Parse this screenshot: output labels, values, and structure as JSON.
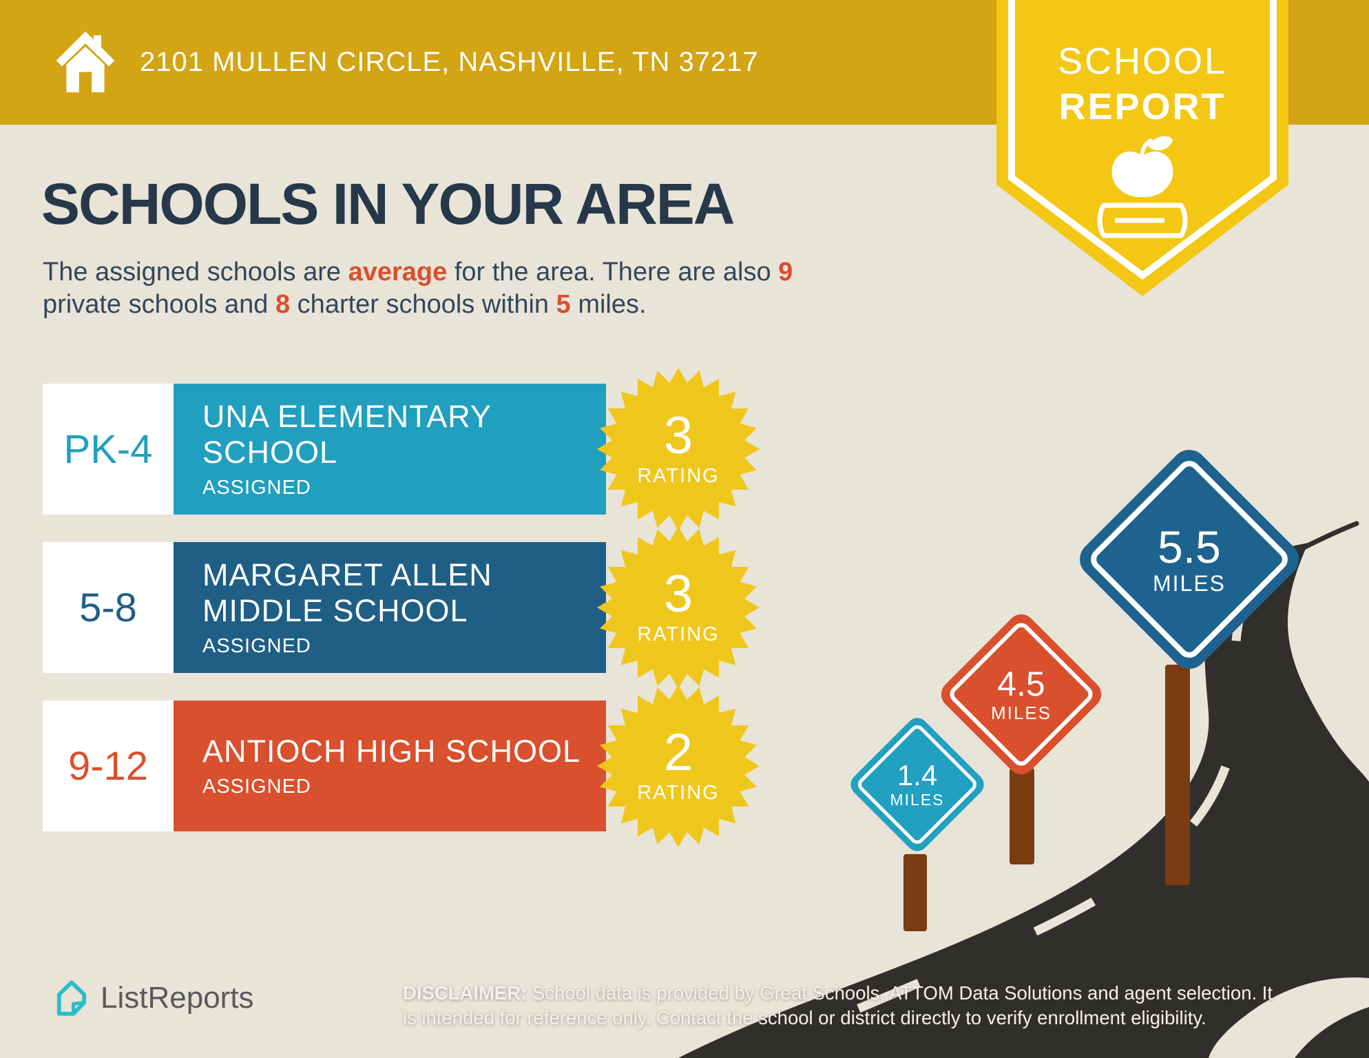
{
  "header": {
    "address": "2101 MULLEN CIRCLE, NASHVILLE, TN 37217"
  },
  "ribbon": {
    "line1": "SCHOOL",
    "line2": "REPORT"
  },
  "title": "SCHOOLS IN YOUR AREA",
  "intro": {
    "line1_a": "The assigned schools are ",
    "highlight_average": "average",
    "line1_b": " for the area. There are also ",
    "highlight_private_count": "9",
    "line2_a": "private schools and ",
    "highlight_charter_count": "8",
    "line2_b": " charter schools within ",
    "highlight_radius": "5",
    "line2_c": " miles."
  },
  "schools": [
    {
      "grades": "PK-4",
      "name_line1": "UNA ELEMENTARY",
      "name_line2": "SCHOOL",
      "status": "ASSIGNED",
      "rating": "3",
      "rating_label": "RATING",
      "color": "#219FBF"
    },
    {
      "grades": "5-8",
      "name_line1": "MARGARET ALLEN",
      "name_line2": "MIDDLE SCHOOL",
      "status": "ASSIGNED",
      "rating": "3",
      "rating_label": "RATING",
      "color": "#1F5F86"
    },
    {
      "grades": "9-12",
      "name_line1": "ANTIOCH HIGH SCHOOL",
      "name_line2": "",
      "status": "ASSIGNED",
      "rating": "2",
      "rating_label": "RATING",
      "color": "#D8502D"
    }
  ],
  "signs": [
    {
      "distance": "1.4",
      "unit": "MILES",
      "color": "#22A0C1"
    },
    {
      "distance": "4.5",
      "unit": "MILES",
      "color": "#D8502D"
    },
    {
      "distance": "5.5",
      "unit": "MILES",
      "color": "#1E6390"
    }
  ],
  "footer": {
    "logo_text": "ListReports",
    "disclaimer_label": "DISCLAIMER:",
    "disclaimer_line1": " School data is provided by Great Schools, ATTOM Data Solutions and agent selection. It",
    "disclaimer_line2": "is intended for reference only. Contact the school or district directly to verify enrollment eligibility."
  },
  "colors": {
    "header_gold": "#D3A413",
    "ribbon_yellow": "#F3C713",
    "background_beige": "#E9E4D8",
    "title_navy": "#26384A",
    "accent_red": "#D8502D",
    "teal": "#219FBF",
    "dark_blue": "#1F5F86",
    "starburst_yellow": "#EFC71C",
    "road_dark": "#312F2B",
    "post_brown": "#7A3C10",
    "logo_teal": "#2BBDC7"
  }
}
